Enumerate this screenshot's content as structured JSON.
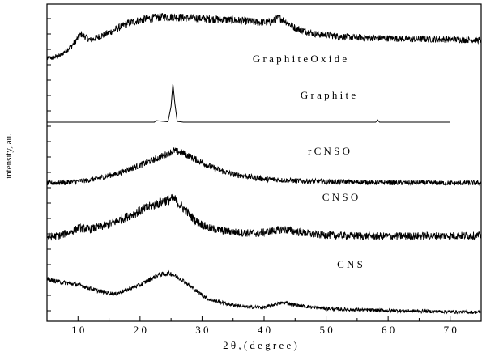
{
  "chart_data": {
    "type": "line",
    "title": "",
    "xlabel": "2 θ , ( d e g r e e )",
    "ylabel": "intensity, au.",
    "xlim": [
      5,
      75
    ],
    "x_ticks": [
      10,
      20,
      30,
      40,
      50,
      60,
      70
    ],
    "x_tick_labels": [
      "1 0",
      "2 0",
      "3 0",
      "4 0",
      "5 0",
      "6 0",
      "7 0"
    ],
    "y_ticks_shown": false,
    "grid": false,
    "legend": "none",
    "series": [
      {
        "name": "G r a p h i t e   O x i d e",
        "x": [
          5,
          7,
          9,
          10.5,
          12,
          15,
          18,
          21,
          24,
          27,
          30,
          33,
          36,
          39,
          41,
          42.5,
          43.5,
          45,
          48,
          52,
          56,
          60,
          64,
          68,
          72,
          75
        ],
        "y": [
          0.02,
          0.08,
          0.3,
          0.55,
          0.42,
          0.58,
          0.78,
          0.88,
          0.92,
          0.9,
          0.88,
          0.86,
          0.84,
          0.8,
          0.8,
          0.9,
          0.82,
          0.68,
          0.56,
          0.5,
          0.47,
          0.46,
          0.44,
          0.44,
          0.43,
          0.42
        ],
        "noise": 0.09
      },
      {
        "name": "G r a p h i t e",
        "x": [
          5,
          20,
          22.3,
          22.6,
          24.5,
          25.0,
          25.3,
          25.6,
          26.0,
          27,
          40,
          58.0,
          58.3,
          58.6,
          60,
          70
        ],
        "y": [
          0,
          0,
          0,
          0.04,
          0.01,
          0.4,
          1.0,
          0.5,
          0.02,
          0,
          0,
          0,
          0.06,
          0,
          0,
          0
        ],
        "noise": 0
      },
      {
        "name": "r C N S O",
        "x": [
          5,
          8,
          12,
          16,
          20,
          23,
          25.5,
          27,
          29,
          32,
          35,
          40,
          45,
          50,
          60,
          70,
          75
        ],
        "y": [
          0.05,
          0.06,
          0.12,
          0.25,
          0.45,
          0.62,
          0.78,
          0.72,
          0.58,
          0.38,
          0.25,
          0.14,
          0.1,
          0.08,
          0.06,
          0.05,
          0.05
        ],
        "noise": 0.09
      },
      {
        "name": "C N S O",
        "x": [
          5,
          7,
          9,
          10,
          12,
          15,
          18,
          21,
          24,
          25.5,
          27,
          29,
          31,
          33,
          36,
          39,
          42,
          43,
          45,
          48,
          52,
          60,
          70,
          75
        ],
        "y": [
          0.12,
          0.15,
          0.22,
          0.28,
          0.26,
          0.34,
          0.48,
          0.62,
          0.75,
          0.78,
          0.62,
          0.4,
          0.28,
          0.24,
          0.2,
          0.19,
          0.24,
          0.26,
          0.22,
          0.17,
          0.15,
          0.14,
          0.15,
          0.15
        ],
        "noise": 0.1
      },
      {
        "name": "C N S",
        "x": [
          5,
          7,
          10,
          13,
          16,
          20,
          23,
          25,
          27,
          29,
          31,
          34,
          37,
          40,
          42,
          43.5,
          45,
          48,
          52,
          56,
          60,
          65,
          70,
          75
        ],
        "y": [
          0.55,
          0.5,
          0.46,
          0.36,
          0.3,
          0.45,
          0.62,
          0.64,
          0.52,
          0.36,
          0.22,
          0.14,
          0.09,
          0.08,
          0.14,
          0.16,
          0.12,
          0.08,
          0.05,
          0.04,
          0.03,
          0.02,
          0.01,
          0.0
        ],
        "noise": 0.045
      }
    ]
  }
}
